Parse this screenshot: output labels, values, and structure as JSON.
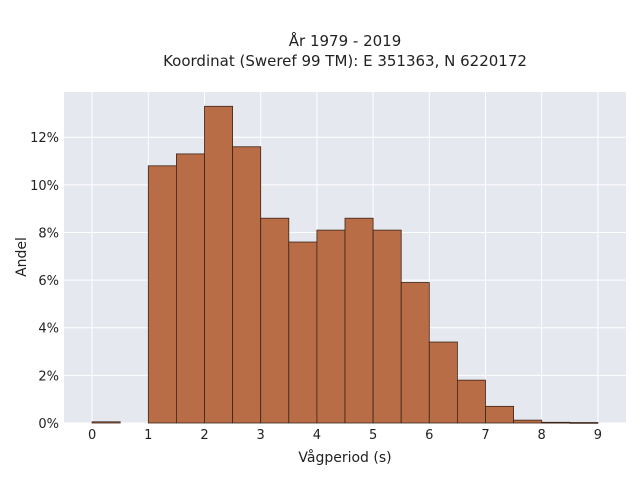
{
  "chart_data": {
    "type": "bar",
    "title_line1": "År 1979 - 2019",
    "title_line2": "Koordinat (Sweref 99 TM): E 351363, N 6220172",
    "xlabel": "Vågperiod (s)",
    "ylabel": "Andel",
    "x_ticks": [
      "0",
      "1",
      "2",
      "3",
      "4",
      "5",
      "6",
      "7",
      "8",
      "9"
    ],
    "y_ticks": [
      "0%",
      "2%",
      "4%",
      "6%",
      "8%",
      "10%",
      "12%"
    ],
    "xlim": [
      -0.5,
      9.5
    ],
    "ylim": [
      0,
      13.9
    ],
    "bin_width": 0.5,
    "bins": [
      {
        "start": 0.0,
        "value": 0.05
      },
      {
        "start": 0.5,
        "value": 0.0
      },
      {
        "start": 1.0,
        "value": 10.8
      },
      {
        "start": 1.5,
        "value": 11.3
      },
      {
        "start": 2.0,
        "value": 13.3
      },
      {
        "start": 2.5,
        "value": 11.6
      },
      {
        "start": 3.0,
        "value": 8.6
      },
      {
        "start": 3.5,
        "value": 7.6
      },
      {
        "start": 4.0,
        "value": 8.1
      },
      {
        "start": 4.5,
        "value": 8.6
      },
      {
        "start": 5.0,
        "value": 8.1
      },
      {
        "start": 5.5,
        "value": 5.9
      },
      {
        "start": 6.0,
        "value": 3.4
      },
      {
        "start": 6.5,
        "value": 1.8
      },
      {
        "start": 7.0,
        "value": 0.7
      },
      {
        "start": 7.5,
        "value": 0.12
      },
      {
        "start": 8.0,
        "value": 0.03
      },
      {
        "start": 8.5,
        "value": 0.02
      }
    ],
    "grid": true,
    "legend": "none",
    "colors": {
      "bar_fill": "#b86d46",
      "bar_edge": "#3b2418",
      "plot_background": "#e6e8f0",
      "grid": "#ffffff"
    }
  }
}
